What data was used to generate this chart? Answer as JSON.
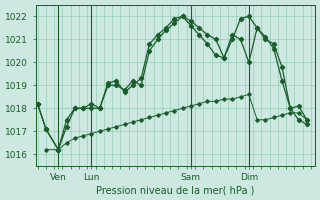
{
  "bg_color": "#cce8e0",
  "grid_color": "#99ccbb",
  "line_color": "#1a5c2a",
  "title": "Pression niveau de la mer( hPa )",
  "ylim": [
    1015.5,
    1022.5
  ],
  "yticks": [
    1016,
    1017,
    1018,
    1019,
    1020,
    1021,
    1022
  ],
  "xtick_labels": [
    "Ven",
    "Lun",
    "Sam",
    "Dim"
  ],
  "xtick_positions": [
    5,
    13,
    37,
    51
  ],
  "vline_positions": [
    5,
    13,
    37,
    51
  ],
  "xlim": [
    -0.5,
    67
  ],
  "series1_x": [
    0,
    2,
    5,
    7,
    9,
    11,
    13,
    15,
    17,
    19,
    21,
    23,
    25,
    27,
    29,
    31,
    33,
    35,
    37,
    39,
    41,
    43,
    45,
    47,
    49,
    51,
    53,
    55,
    57,
    59,
    61,
    63,
    65
  ],
  "series1_y": [
    1018.2,
    1017.1,
    1016.2,
    1017.2,
    1018.0,
    1018.0,
    1018.2,
    1018.0,
    1019.0,
    1019.0,
    1018.8,
    1019.2,
    1019.0,
    1020.5,
    1021.0,
    1021.4,
    1021.7,
    1022.0,
    1021.8,
    1021.5,
    1021.2,
    1021.0,
    1020.2,
    1021.0,
    1021.9,
    1022.0,
    1021.5,
    1021.0,
    1020.8,
    1019.8,
    1018.0,
    1017.5,
    1017.3
  ],
  "series2_x": [
    0,
    2,
    5,
    7,
    9,
    11,
    13,
    15,
    17,
    19,
    21,
    23,
    25,
    27,
    29,
    31,
    33,
    35,
    37,
    39,
    41,
    43,
    45,
    47,
    49,
    51,
    53,
    55,
    57,
    59,
    61,
    63,
    65
  ],
  "series2_y": [
    1018.2,
    1017.1,
    1016.2,
    1017.5,
    1018.0,
    1018.0,
    1018.0,
    1018.0,
    1019.1,
    1019.2,
    1018.7,
    1019.0,
    1019.3,
    1020.8,
    1021.2,
    1021.5,
    1021.9,
    1022.0,
    1021.6,
    1021.2,
    1020.8,
    1020.3,
    1020.2,
    1021.2,
    1021.0,
    1020.0,
    1021.5,
    1021.1,
    1020.6,
    1019.2,
    1018.0,
    1018.1,
    1017.5
  ],
  "series3_x": [
    2,
    5,
    7,
    9,
    11,
    13,
    15,
    17,
    19,
    21,
    23,
    25,
    27,
    29,
    31,
    33,
    35,
    37,
    39,
    41,
    43,
    45,
    47,
    49,
    51,
    53,
    55,
    57,
    59,
    61,
    63,
    65
  ],
  "series3_y": [
    1016.2,
    1016.2,
    1016.5,
    1016.7,
    1016.8,
    1016.9,
    1017.0,
    1017.1,
    1017.2,
    1017.3,
    1017.4,
    1017.5,
    1017.6,
    1017.7,
    1017.8,
    1017.9,
    1018.0,
    1018.1,
    1018.2,
    1018.3,
    1018.3,
    1018.4,
    1018.4,
    1018.5,
    1018.6,
    1017.5,
    1017.5,
    1017.6,
    1017.7,
    1017.8,
    1017.8,
    1017.5
  ]
}
